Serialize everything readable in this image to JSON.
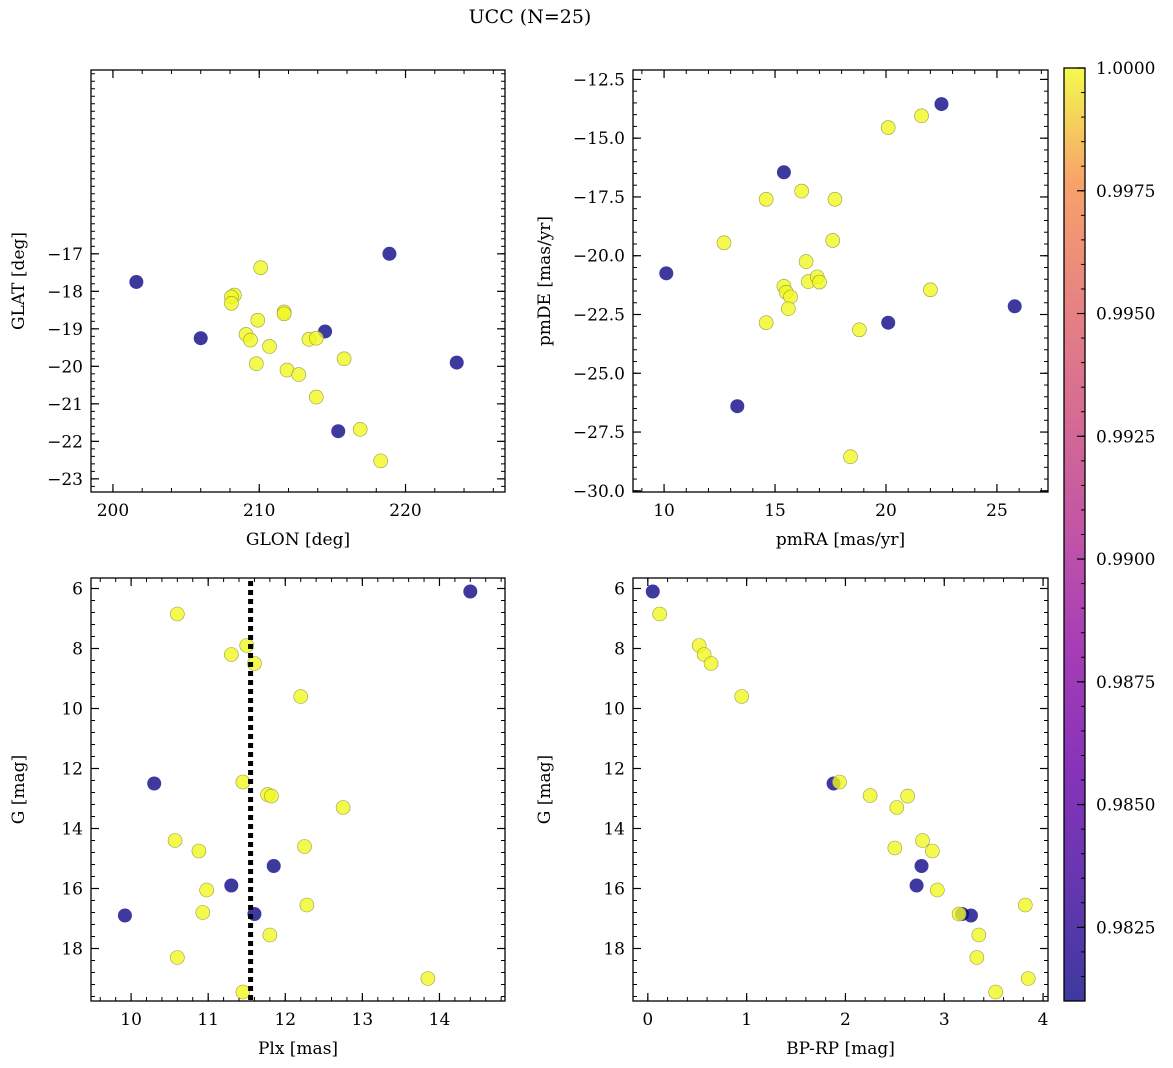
{
  "figure": {
    "title": "UCC (N=25)",
    "colormap": "plasma",
    "point_alpha": 0.8,
    "colorbar": {
      "vmin": 0.981,
      "vmax": 1.0,
      "ticks": [
        0.9825,
        0.985,
        0.9875,
        0.99,
        0.9925,
        0.995,
        0.9975,
        1.0
      ],
      "tick_labels": [
        "0.9825",
        "0.9850",
        "0.9875",
        "0.9900",
        "0.9925",
        "0.9950",
        "0.9975",
        "1.0000"
      ]
    }
  },
  "chart_data": [
    {
      "type": "scatter",
      "xlabel": "GLON [deg]",
      "ylabel": "GLAT [deg]",
      "xlim": [
        198.5,
        226.8
      ],
      "ylim": [
        -23.35,
        -12.1
      ],
      "xticks": [
        200,
        210,
        220
      ],
      "xtick_labels": [
        "200",
        "210",
        "220"
      ],
      "yticks": [
        -17,
        -18,
        -19,
        -20,
        -21,
        -22,
        -23
      ],
      "ytick_labels": [
        "−17",
        "−18",
        "−19",
        "−20",
        "−21",
        "−22",
        "−23"
      ],
      "points": [
        {
          "x": 201.6,
          "y": -17.75,
          "c": 0.981
        },
        {
          "x": 206.0,
          "y": -19.25,
          "c": 0.981
        },
        {
          "x": 218.9,
          "y": -17.0,
          "c": 0.981
        },
        {
          "x": 214.5,
          "y": -19.07,
          "c": 0.981
        },
        {
          "x": 223.5,
          "y": -19.9,
          "c": 0.981
        },
        {
          "x": 215.4,
          "y": -21.73,
          "c": 0.981
        },
        {
          "x": 210.1,
          "y": -17.37,
          "c": 1.0
        },
        {
          "x": 208.3,
          "y": -18.1,
          "c": 1.0
        },
        {
          "x": 208.1,
          "y": -18.15,
          "c": 1.0
        },
        {
          "x": 208.1,
          "y": -18.32,
          "c": 1.0
        },
        {
          "x": 211.7,
          "y": -18.55,
          "c": 1.0
        },
        {
          "x": 211.7,
          "y": -18.6,
          "c": 1.0
        },
        {
          "x": 209.9,
          "y": -18.77,
          "c": 1.0
        },
        {
          "x": 209.1,
          "y": -19.15,
          "c": 1.0
        },
        {
          "x": 209.4,
          "y": -19.3,
          "c": 1.0
        },
        {
          "x": 213.4,
          "y": -19.28,
          "c": 1.0
        },
        {
          "x": 213.9,
          "y": -19.25,
          "c": 1.0
        },
        {
          "x": 210.7,
          "y": -19.47,
          "c": 1.0
        },
        {
          "x": 215.8,
          "y": -19.8,
          "c": 1.0
        },
        {
          "x": 209.8,
          "y": -19.93,
          "c": 1.0
        },
        {
          "x": 211.9,
          "y": -20.1,
          "c": 1.0
        },
        {
          "x": 212.7,
          "y": -20.22,
          "c": 1.0
        },
        {
          "x": 213.9,
          "y": -20.82,
          "c": 1.0
        },
        {
          "x": 216.9,
          "y": -21.68,
          "c": 1.0
        },
        {
          "x": 218.3,
          "y": -22.52,
          "c": 1.0
        }
      ]
    },
    {
      "type": "scatter",
      "xlabel": "pmRA [mas/yr]",
      "ylabel": "pmDE [mas/yr]",
      "xlim": [
        8.6,
        27.3
      ],
      "ylim": [
        -30.05,
        -12.1
      ],
      "xticks": [
        10,
        15,
        20,
        25
      ],
      "xtick_labels": [
        "10",
        "15",
        "20",
        "25"
      ],
      "yticks": [
        -12.5,
        -15.0,
        -17.5,
        -20.0,
        -22.5,
        -25.0,
        -27.5,
        -30.0
      ],
      "ytick_labels": [
        "−12.5",
        "−15.0",
        "−17.5",
        "−20.0",
        "−22.5",
        "−25.0",
        "−27.5",
        "−30.0"
      ],
      "points": [
        {
          "x": 10.1,
          "y": -20.75,
          "c": 0.981
        },
        {
          "x": 13.3,
          "y": -26.4,
          "c": 0.981
        },
        {
          "x": 15.4,
          "y": -16.45,
          "c": 0.981
        },
        {
          "x": 20.1,
          "y": -22.85,
          "c": 0.981
        },
        {
          "x": 22.5,
          "y": -13.55,
          "c": 0.981
        },
        {
          "x": 25.8,
          "y": -22.15,
          "c": 0.981
        },
        {
          "x": 12.7,
          "y": -19.45,
          "c": 1.0
        },
        {
          "x": 14.6,
          "y": -17.6,
          "c": 1.0
        },
        {
          "x": 14.6,
          "y": -22.85,
          "c": 1.0
        },
        {
          "x": 15.4,
          "y": -21.3,
          "c": 1.0
        },
        {
          "x": 15.5,
          "y": -21.55,
          "c": 1.0
        },
        {
          "x": 15.7,
          "y": -21.75,
          "c": 1.0
        },
        {
          "x": 15.6,
          "y": -22.25,
          "c": 1.0
        },
        {
          "x": 16.2,
          "y": -17.25,
          "c": 1.0
        },
        {
          "x": 16.4,
          "y": -20.25,
          "c": 1.0
        },
        {
          "x": 16.5,
          "y": -21.1,
          "c": 1.0
        },
        {
          "x": 16.9,
          "y": -20.9,
          "c": 1.0
        },
        {
          "x": 17.0,
          "y": -21.12,
          "c": 1.0
        },
        {
          "x": 17.6,
          "y": -19.35,
          "c": 1.0
        },
        {
          "x": 17.7,
          "y": -17.6,
          "c": 1.0
        },
        {
          "x": 18.8,
          "y": -23.15,
          "c": 1.0
        },
        {
          "x": 18.4,
          "y": -28.55,
          "c": 1.0
        },
        {
          "x": 20.1,
          "y": -14.55,
          "c": 1.0
        },
        {
          "x": 21.6,
          "y": -14.05,
          "c": 1.0
        },
        {
          "x": 22.0,
          "y": -21.45,
          "c": 1.0
        }
      ]
    },
    {
      "type": "scatter",
      "xlabel": "Plx [mas]",
      "ylabel": "G [mag]",
      "xlim": [
        9.48,
        14.85
      ],
      "ylim": [
        19.75,
        5.65
      ],
      "invert_y": true,
      "xticks": [
        10,
        11,
        12,
        13,
        14
      ],
      "xtick_labels": [
        "10",
        "11",
        "12",
        "13",
        "14"
      ],
      "yticks": [
        6,
        8,
        10,
        12,
        14,
        16,
        18
      ],
      "ytick_labels": [
        "6",
        "8",
        "10",
        "12",
        "14",
        "16",
        "18"
      ],
      "vline": {
        "x": 11.55,
        "style": "dotted",
        "color": "#000000"
      },
      "points": [
        {
          "x": 14.4,
          "y": 6.1,
          "c": 0.981
        },
        {
          "x": 10.3,
          "y": 12.5,
          "c": 0.981
        },
        {
          "x": 11.85,
          "y": 15.25,
          "c": 0.981
        },
        {
          "x": 11.3,
          "y": 15.9,
          "c": 0.981
        },
        {
          "x": 11.6,
          "y": 16.85,
          "c": 0.981
        },
        {
          "x": 9.92,
          "y": 16.9,
          "c": 0.981
        },
        {
          "x": 10.6,
          "y": 6.85,
          "c": 1.0
        },
        {
          "x": 11.5,
          "y": 7.9,
          "c": 1.0
        },
        {
          "x": 11.3,
          "y": 8.2,
          "c": 1.0
        },
        {
          "x": 11.6,
          "y": 8.5,
          "c": 1.0
        },
        {
          "x": 12.2,
          "y": 9.6,
          "c": 1.0
        },
        {
          "x": 11.45,
          "y": 12.45,
          "c": 1.0
        },
        {
          "x": 11.77,
          "y": 12.87,
          "c": 1.0
        },
        {
          "x": 11.82,
          "y": 12.92,
          "c": 1.0
        },
        {
          "x": 12.75,
          "y": 13.3,
          "c": 1.0
        },
        {
          "x": 10.57,
          "y": 14.4,
          "c": 1.0
        },
        {
          "x": 12.25,
          "y": 14.6,
          "c": 1.0
        },
        {
          "x": 10.88,
          "y": 14.75,
          "c": 1.0
        },
        {
          "x": 10.98,
          "y": 16.05,
          "c": 1.0
        },
        {
          "x": 12.28,
          "y": 16.55,
          "c": 1.0
        },
        {
          "x": 10.93,
          "y": 16.8,
          "c": 1.0
        },
        {
          "x": 11.8,
          "y": 17.55,
          "c": 1.0
        },
        {
          "x": 10.6,
          "y": 18.3,
          "c": 1.0
        },
        {
          "x": 13.85,
          "y": 19.0,
          "c": 1.0
        },
        {
          "x": 11.45,
          "y": 19.45,
          "c": 1.0
        }
      ]
    },
    {
      "type": "scatter",
      "xlabel": "BP-RP [mag]",
      "ylabel": "G [mag]",
      "xlim": [
        -0.15,
        4.05
      ],
      "ylim": [
        19.75,
        5.65
      ],
      "invert_y": true,
      "xticks": [
        0,
        1,
        2,
        3,
        4
      ],
      "xtick_labels": [
        "0",
        "1",
        "2",
        "3",
        "4"
      ],
      "yticks": [
        6,
        8,
        10,
        12,
        14,
        16,
        18
      ],
      "ytick_labels": [
        "6",
        "8",
        "10",
        "12",
        "14",
        "16",
        "18"
      ],
      "points": [
        {
          "x": 0.05,
          "y": 6.1,
          "c": 0.981
        },
        {
          "x": 1.88,
          "y": 12.5,
          "c": 0.981
        },
        {
          "x": 2.77,
          "y": 15.25,
          "c": 0.981
        },
        {
          "x": 2.72,
          "y": 15.9,
          "c": 0.981
        },
        {
          "x": 3.18,
          "y": 16.85,
          "c": 0.981
        },
        {
          "x": 3.27,
          "y": 16.9,
          "c": 0.981
        },
        {
          "x": 0.12,
          "y": 6.85,
          "c": 1.0
        },
        {
          "x": 0.52,
          "y": 7.9,
          "c": 1.0
        },
        {
          "x": 0.57,
          "y": 8.2,
          "c": 1.0
        },
        {
          "x": 0.64,
          "y": 8.5,
          "c": 1.0
        },
        {
          "x": 0.95,
          "y": 9.6,
          "c": 1.0
        },
        {
          "x": 1.94,
          "y": 12.45,
          "c": 1.0
        },
        {
          "x": 2.25,
          "y": 12.9,
          "c": 1.0
        },
        {
          "x": 2.63,
          "y": 12.92,
          "c": 1.0
        },
        {
          "x": 2.52,
          "y": 13.3,
          "c": 1.0
        },
        {
          "x": 2.78,
          "y": 14.4,
          "c": 1.0
        },
        {
          "x": 2.5,
          "y": 14.65,
          "c": 1.0
        },
        {
          "x": 2.88,
          "y": 14.75,
          "c": 1.0
        },
        {
          "x": 2.93,
          "y": 16.05,
          "c": 1.0
        },
        {
          "x": 3.82,
          "y": 16.55,
          "c": 1.0
        },
        {
          "x": 3.15,
          "y": 16.85,
          "c": 1.0
        },
        {
          "x": 3.35,
          "y": 17.55,
          "c": 1.0
        },
        {
          "x": 3.33,
          "y": 18.3,
          "c": 1.0
        },
        {
          "x": 3.85,
          "y": 19.0,
          "c": 1.0
        },
        {
          "x": 3.52,
          "y": 19.45,
          "c": 1.0
        }
      ]
    }
  ]
}
